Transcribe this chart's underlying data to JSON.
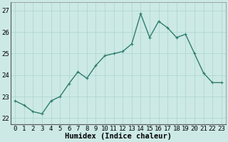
{
  "x": [
    0,
    1,
    2,
    3,
    4,
    5,
    6,
    7,
    8,
    9,
    10,
    11,
    12,
    13,
    14,
    15,
    16,
    17,
    18,
    19,
    20,
    21,
    22,
    23
  ],
  "y": [
    22.8,
    22.6,
    22.3,
    22.2,
    22.8,
    23.0,
    23.6,
    24.15,
    23.85,
    24.45,
    24.9,
    25.0,
    25.1,
    25.45,
    26.85,
    25.75,
    26.5,
    26.2,
    25.75,
    25.9,
    25.0,
    24.1,
    23.65,
    23.65
  ],
  "line_color": "#2e7d6e",
  "marker": "+",
  "marker_size": 3,
  "background_color": "#cce9e5",
  "grid_color": "#aad4cf",
  "xlabel": "Humidex (Indice chaleur)",
  "ylim": [
    21.7,
    27.4
  ],
  "xlim": [
    -0.5,
    23.5
  ],
  "yticks": [
    22,
    23,
    24,
    25,
    26,
    27
  ],
  "xticks": [
    0,
    1,
    2,
    3,
    4,
    5,
    6,
    7,
    8,
    9,
    10,
    11,
    12,
    13,
    14,
    15,
    16,
    17,
    18,
    19,
    20,
    21,
    22,
    23
  ],
  "tick_fontsize": 6.5,
  "xlabel_fontsize": 7.5,
  "linewidth": 1.0
}
